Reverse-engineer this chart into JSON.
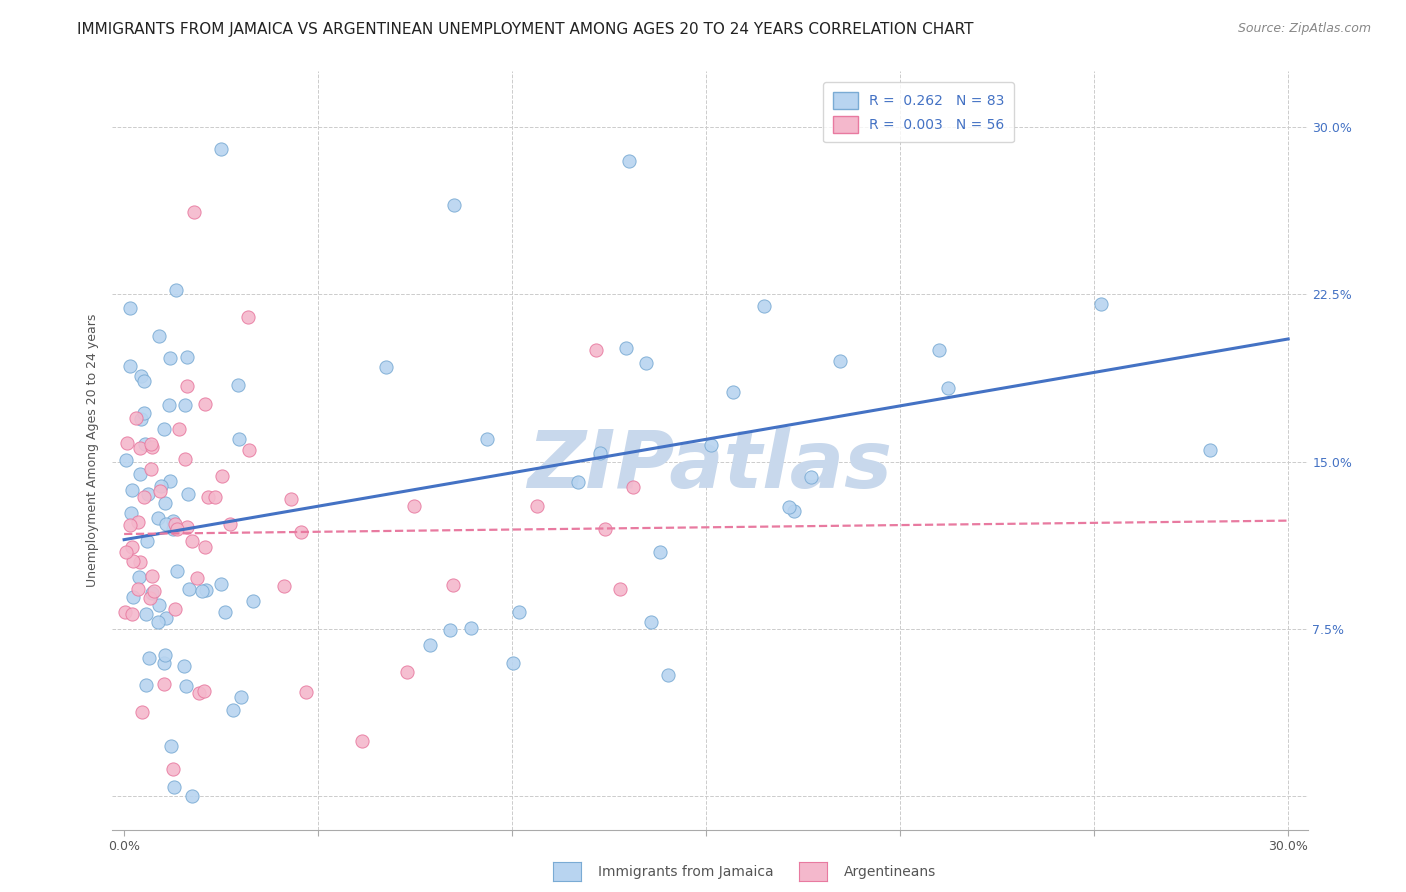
{
  "title": "IMMIGRANTS FROM JAMAICA VS ARGENTINEAN UNEMPLOYMENT AMONG AGES 20 TO 24 YEARS CORRELATION CHART",
  "source": "Source: ZipAtlas.com",
  "ylabel": "Unemployment Among Ages 20 to 24 years",
  "y_ticks": [
    0.0,
    0.075,
    0.15,
    0.225,
    0.3
  ],
  "y_tick_labels_right": [
    "",
    "7.5%",
    "15.0%",
    "22.5%",
    "30.0%"
  ],
  "x_ticks": [
    0.0,
    0.05,
    0.1,
    0.15,
    0.2,
    0.25,
    0.3
  ],
  "series_jamaica": {
    "color": "#b8d4f0",
    "edge_color": "#7aabd4",
    "R": 0.262,
    "N": 83,
    "line_color": "#4472c4",
    "line_style": "solid"
  },
  "series_argentina": {
    "color": "#f4b8cc",
    "edge_color": "#e87aa0",
    "R": 0.003,
    "N": 56,
    "line_color": "#e87aa0",
    "line_style": "dashed"
  },
  "background_color": "#ffffff",
  "grid_color": "#cccccc",
  "title_fontsize": 11,
  "source_fontsize": 9,
  "axis_label_fontsize": 9,
  "tick_fontsize": 9,
  "legend_fontsize": 10,
  "watermark_text": "ZIPatlas",
  "watermark_color": "#c8d8ec",
  "dot_size": 90,
  "xlim": [
    -0.003,
    0.305
  ],
  "ylim": [
    -0.015,
    0.325
  ]
}
